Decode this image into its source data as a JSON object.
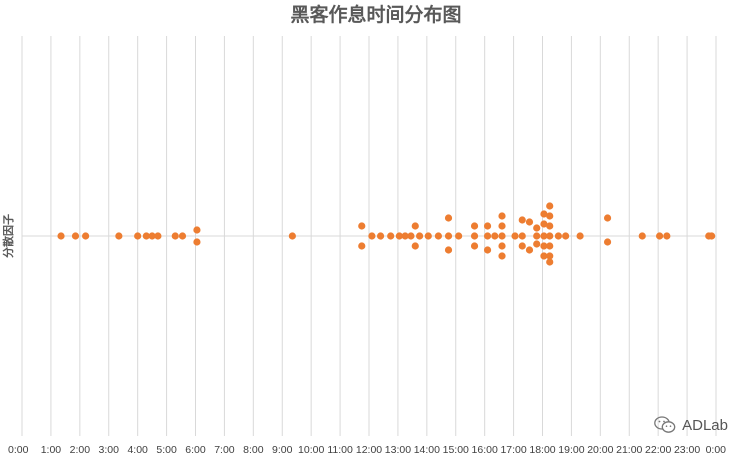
{
  "watermark": {
    "text": "ADLab",
    "icon": "wechat-icon"
  },
  "chart_data": {
    "type": "scatter",
    "title": "黑客作息时间分布图",
    "ylabel": "分散因子",
    "xlabel": "",
    "grid": true,
    "legend": "none",
    "colors": {
      "points": "#ED7D31",
      "grid": "#D9D9D9",
      "title": "#595959"
    },
    "xlim": [
      0,
      24
    ],
    "ylim": [
      -1,
      1
    ],
    "x_ticks": [
      "0:00",
      "1:00",
      "2:00",
      "3:00",
      "4:00",
      "5:00",
      "6:00",
      "7:00",
      "8:00",
      "9:00",
      "10:00",
      "11:00",
      "12:00",
      "13:00",
      "14:00",
      "15:00",
      "16:00",
      "17:00",
      "18:00",
      "19:00",
      "20:00",
      "21:00",
      "22:00",
      "23:00",
      "0:00"
    ],
    "points": [
      {
        "x": 1.35,
        "y": 0
      },
      {
        "x": 1.85,
        "y": 0
      },
      {
        "x": 2.2,
        "y": 0
      },
      {
        "x": 3.35,
        "y": 0
      },
      {
        "x": 4.0,
        "y": 0
      },
      {
        "x": 4.3,
        "y": 0
      },
      {
        "x": 4.5,
        "y": 0
      },
      {
        "x": 4.7,
        "y": 0
      },
      {
        "x": 5.3,
        "y": 0
      },
      {
        "x": 5.55,
        "y": 0
      },
      {
        "x": 6.05,
        "y": 0.03
      },
      {
        "x": 6.05,
        "y": -0.03
      },
      {
        "x": 9.35,
        "y": 0
      },
      {
        "x": 11.75,
        "y": 0.05
      },
      {
        "x": 11.75,
        "y": -0.05
      },
      {
        "x": 12.1,
        "y": 0
      },
      {
        "x": 12.4,
        "y": 0
      },
      {
        "x": 12.75,
        "y": 0
      },
      {
        "x": 13.05,
        "y": 0
      },
      {
        "x": 13.25,
        "y": 0
      },
      {
        "x": 13.45,
        "y": 0
      },
      {
        "x": 13.6,
        "y": 0.05
      },
      {
        "x": 13.6,
        "y": -0.05
      },
      {
        "x": 13.75,
        "y": 0
      },
      {
        "x": 14.05,
        "y": 0
      },
      {
        "x": 14.4,
        "y": 0
      },
      {
        "x": 14.75,
        "y": 0.09
      },
      {
        "x": 14.75,
        "y": 0
      },
      {
        "x": 14.75,
        "y": -0.07
      },
      {
        "x": 15.1,
        "y": 0
      },
      {
        "x": 15.65,
        "y": 0.05
      },
      {
        "x": 15.65,
        "y": 0
      },
      {
        "x": 15.65,
        "y": -0.05
      },
      {
        "x": 16.1,
        "y": 0.05
      },
      {
        "x": 16.1,
        "y": 0
      },
      {
        "x": 16.1,
        "y": -0.07
      },
      {
        "x": 16.35,
        "y": 0
      },
      {
        "x": 16.6,
        "y": 0.1
      },
      {
        "x": 16.6,
        "y": 0.05
      },
      {
        "x": 16.6,
        "y": 0
      },
      {
        "x": 16.6,
        "y": -0.05
      },
      {
        "x": 16.6,
        "y": -0.1
      },
      {
        "x": 17.05,
        "y": 0
      },
      {
        "x": 17.3,
        "y": 0.08
      },
      {
        "x": 17.3,
        "y": 0
      },
      {
        "x": 17.3,
        "y": -0.05
      },
      {
        "x": 17.55,
        "y": 0.07
      },
      {
        "x": 17.55,
        "y": -0.07
      },
      {
        "x": 17.8,
        "y": 0.04
      },
      {
        "x": 17.8,
        "y": 0
      },
      {
        "x": 17.8,
        "y": -0.04
      },
      {
        "x": 18.05,
        "y": 0.11
      },
      {
        "x": 18.05,
        "y": 0.06
      },
      {
        "x": 18.05,
        "y": 0
      },
      {
        "x": 18.05,
        "y": -0.05
      },
      {
        "x": 18.05,
        "y": -0.1
      },
      {
        "x": 18.25,
        "y": 0.15
      },
      {
        "x": 18.25,
        "y": 0.1
      },
      {
        "x": 18.25,
        "y": 0.05
      },
      {
        "x": 18.25,
        "y": 0
      },
      {
        "x": 18.25,
        "y": -0.05
      },
      {
        "x": 18.25,
        "y": -0.1
      },
      {
        "x": 18.25,
        "y": -0.13
      },
      {
        "x": 18.55,
        "y": 0
      },
      {
        "x": 18.8,
        "y": 0
      },
      {
        "x": 19.3,
        "y": 0
      },
      {
        "x": 20.25,
        "y": 0.09
      },
      {
        "x": 20.25,
        "y": -0.03
      },
      {
        "x": 21.45,
        "y": 0
      },
      {
        "x": 22.05,
        "y": 0
      },
      {
        "x": 22.3,
        "y": 0
      },
      {
        "x": 23.75,
        "y": 0
      },
      {
        "x": 23.85,
        "y": 0
      }
    ]
  }
}
